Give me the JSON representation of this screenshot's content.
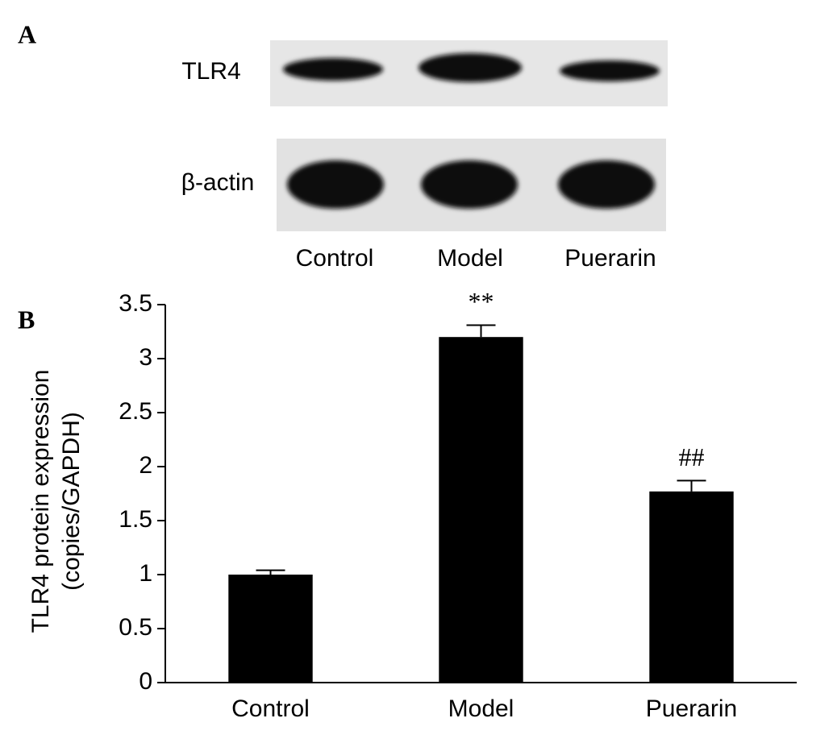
{
  "panel_a": {
    "label": "A",
    "rows": [
      "TLR4",
      "β-actin"
    ],
    "lanes": [
      "Control",
      "Model",
      "Puerarin"
    ]
  },
  "chart_data": {
    "type": "bar",
    "panel_label": "B",
    "y_label": [
      "TLR4 protein expression",
      "(copies/GAPDH)"
    ],
    "categories": [
      "Control",
      "Model",
      "Puerarin"
    ],
    "values": [
      1.0,
      3.2,
      1.77
    ],
    "errors": [
      0.04,
      0.11,
      0.1
    ],
    "significance": [
      null,
      "**",
      "##"
    ],
    "color": "#000000",
    "ylim": [
      0,
      3.5
    ],
    "yticks": [
      0,
      0.5,
      1,
      1.5,
      2,
      2.5,
      3,
      3.5
    ],
    "grid": false
  }
}
